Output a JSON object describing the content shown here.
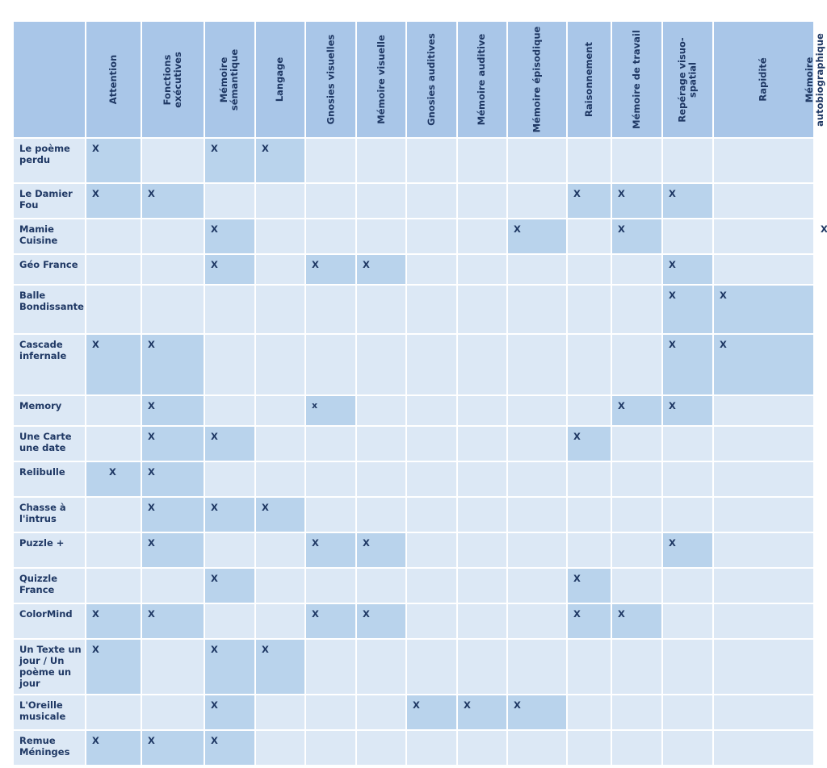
{
  "columns": [
    {
      "label": "Attention"
    },
    {
      "label": "Fonctions\nexécutives"
    },
    {
      "label": "Mémoire\nsémantique"
    },
    {
      "label": "Langage"
    },
    {
      "label": "Gnosies visuelles"
    },
    {
      "label": "Mémoire visuelle"
    },
    {
      "label": "Gnosies auditives"
    },
    {
      "label": "Mémoire auditive"
    },
    {
      "label": "Mémoire épisodique"
    },
    {
      "label": "Raisonnement"
    },
    {
      "label": "Mémoire de travail"
    },
    {
      "label": "Repérage visuo-\nspatial"
    },
    {
      "label": "Rapidité"
    },
    {
      "label": "Mémoire\nautobiographique"
    }
  ],
  "rows": [
    {
      "name": "Le poème\nperdu",
      "marks": [
        "X",
        "",
        "X",
        "X",
        "",
        "",
        "",
        "",
        "",
        "",
        "",
        "",
        "",
        ""
      ]
    },
    {
      "name": "Le Damier\nFou",
      "marks": [
        "X",
        "X",
        "",
        "",
        "",
        "",
        "",
        "",
        "",
        "X",
        "X",
        "X",
        "",
        ""
      ]
    },
    {
      "name": "Mamie\nCuisine",
      "marks": [
        "",
        "",
        "X",
        "",
        "",
        "",
        "",
        "",
        "X",
        "",
        "X",
        "",
        "",
        "X"
      ]
    },
    {
      "name": "Géo France",
      "marks": [
        "",
        "",
        "X",
        "",
        "X",
        "X",
        "",
        "",
        "",
        "",
        "",
        "X",
        "",
        ""
      ]
    },
    {
      "name": "Balle\nBondissante",
      "marks": [
        "",
        "",
        "",
        "",
        "",
        "",
        "",
        "",
        "",
        "",
        "",
        "X",
        "X",
        ""
      ]
    },
    {
      "name": "Cascade\ninfernale",
      "marks": [
        "X",
        "X",
        "",
        "",
        "",
        "",
        "",
        "",
        "",
        "",
        "",
        "X",
        "X",
        ""
      ]
    },
    {
      "name": "Memory",
      "marks": [
        "",
        "X",
        "",
        "",
        "x",
        "",
        "",
        "",
        "",
        "",
        "X",
        "X",
        "",
        ""
      ]
    },
    {
      "name": "Une Carte\nune date",
      "marks": [
        "",
        "X",
        "X",
        "",
        "",
        "",
        "",
        "",
        "",
        "X",
        "",
        "",
        "",
        ""
      ]
    },
    {
      "name": "Relibulle",
      "marks": [
        "X",
        "X",
        "",
        "",
        "",
        "",
        "",
        "",
        "",
        "",
        "",
        "",
        "",
        ""
      ]
    },
    {
      "name": "Chasse à\nl'intrus",
      "marks": [
        "",
        "X",
        "X",
        "X",
        "",
        "",
        "",
        "",
        "",
        "",
        "",
        "",
        "",
        ""
      ]
    },
    {
      "name": "Puzzle +",
      "marks": [
        "",
        "X",
        "",
        "",
        "X",
        "X",
        "",
        "",
        "",
        "",
        "",
        "X",
        "",
        ""
      ]
    },
    {
      "name": "Quizzle\nFrance",
      "marks": [
        "",
        "",
        "X",
        "",
        "",
        "",
        "",
        "",
        "",
        "X",
        "",
        "",
        "",
        ""
      ]
    },
    {
      "name": "ColorMind",
      "marks": [
        "X",
        "X",
        "",
        "",
        "X",
        "X",
        "",
        "",
        "",
        "X",
        "X",
        "",
        "",
        ""
      ]
    },
    {
      "name": "Un Texte un\njour / Un\npoème un\njour",
      "marks": [
        "X",
        "",
        "X",
        "X",
        "",
        "",
        "",
        "",
        "",
        "",
        "",
        "",
        "",
        ""
      ]
    },
    {
      "name": "L'Oreille\nmusicale",
      "marks": [
        "",
        "",
        "X",
        "",
        "",
        "",
        "X",
        "X",
        "X",
        "",
        "",
        "",
        "",
        ""
      ]
    },
    {
      "name": "Remue\nMéninges",
      "marks": [
        "X",
        "X",
        "X",
        "",
        "",
        "",
        "",
        "",
        "",
        "",
        "",
        "",
        "",
        ""
      ]
    }
  ]
}
